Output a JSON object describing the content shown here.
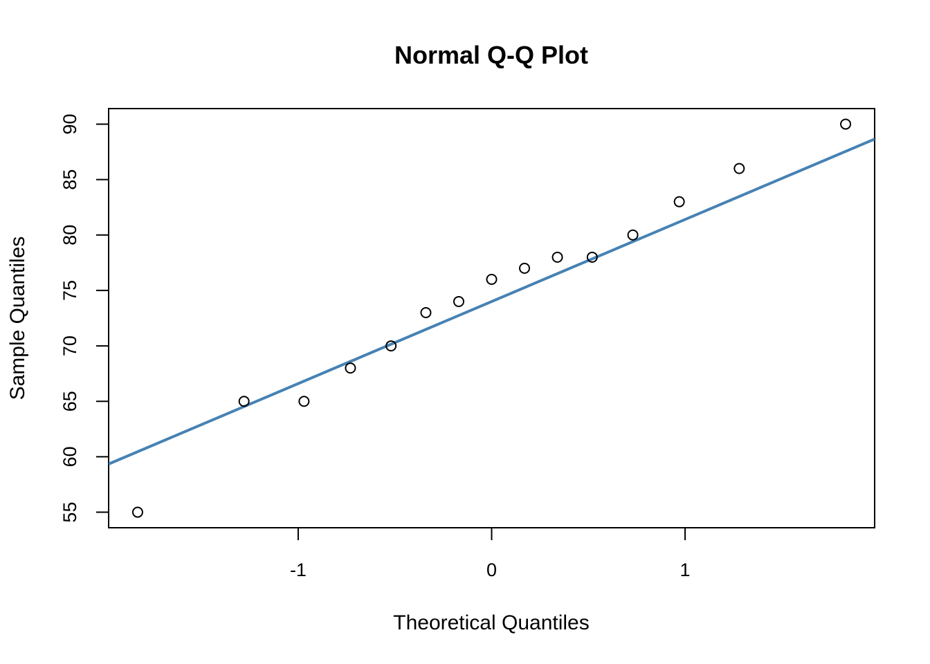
{
  "chart_data": {
    "type": "scatter",
    "title": "Normal Q-Q Plot",
    "xlabel": "Theoretical Quantiles",
    "ylabel": "Sample Quantiles",
    "xlim": [
      -1.98,
      1.98
    ],
    "ylim": [
      53.6,
      91.4
    ],
    "x_ticks": [
      -1,
      0,
      1
    ],
    "x_tick_labels": [
      "-1",
      "0",
      "1"
    ],
    "y_ticks": [
      55,
      60,
      65,
      70,
      75,
      80,
      85,
      90
    ],
    "y_tick_labels": [
      "55",
      "60",
      "65",
      "70",
      "75",
      "80",
      "85",
      "90"
    ],
    "points": [
      {
        "x": -1.83,
        "y": 55
      },
      {
        "x": -1.28,
        "y": 65
      },
      {
        "x": -0.97,
        "y": 65
      },
      {
        "x": -0.73,
        "y": 68
      },
      {
        "x": -0.52,
        "y": 70
      },
      {
        "x": -0.34,
        "y": 73
      },
      {
        "x": -0.17,
        "y": 74
      },
      {
        "x": 0.0,
        "y": 76
      },
      {
        "x": 0.17,
        "y": 77
      },
      {
        "x": 0.34,
        "y": 78
      },
      {
        "x": 0.52,
        "y": 78
      },
      {
        "x": 0.73,
        "y": 80
      },
      {
        "x": 0.97,
        "y": 83
      },
      {
        "x": 1.28,
        "y": 86
      },
      {
        "x": 1.83,
        "y": 90
      }
    ],
    "reference_line": {
      "intercept": 74.0,
      "slope": 7.4,
      "color": "#4682B4"
    },
    "point_style": "open-circle",
    "grid": false,
    "legend": "none"
  }
}
